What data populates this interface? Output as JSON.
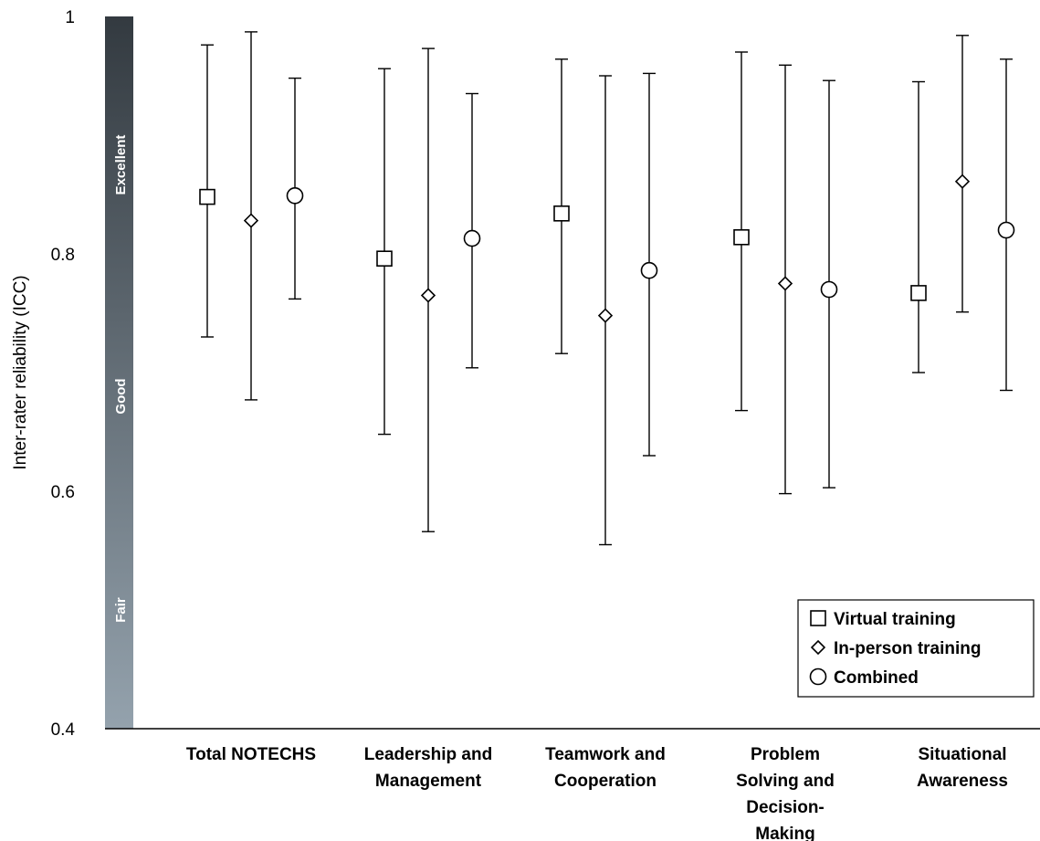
{
  "chart_data": {
    "type": "scatter",
    "ylabel": "Inter-rater reliability (ICC)",
    "xlabel": "",
    "ylim": [
      0.4,
      1.0
    ],
    "yticks": [
      0.4,
      0.6,
      0.8,
      1.0
    ],
    "ytick_labels": [
      "0.4",
      "0.6",
      "0.8",
      "1"
    ],
    "categories": [
      [
        "Total NOTECHS"
      ],
      [
        "Leadership and",
        "Management"
      ],
      [
        "Teamwork and",
        "Cooperation"
      ],
      [
        "Problem",
        "Solving and",
        "Decision-",
        "Making"
      ],
      [
        "Situational",
        "Awareness"
      ]
    ],
    "series": [
      {
        "name": "Virtual training",
        "marker": "square",
        "values": [
          0.848,
          0.796,
          0.834,
          0.814,
          0.767
        ],
        "lower": [
          0.73,
          0.648,
          0.716,
          0.668,
          0.7
        ],
        "upper": [
          0.976,
          0.956,
          0.964,
          0.97,
          0.945
        ]
      },
      {
        "name": "In-person training",
        "marker": "diamond",
        "values": [
          0.828,
          0.765,
          0.748,
          0.775,
          0.861
        ],
        "lower": [
          0.677,
          0.566,
          0.555,
          0.598,
          0.751
        ],
        "upper": [
          0.987,
          0.973,
          0.95,
          0.959,
          0.984
        ]
      },
      {
        "name": "Combined",
        "marker": "circle",
        "values": [
          0.849,
          0.813,
          0.786,
          0.77,
          0.82
        ],
        "lower": [
          0.762,
          0.704,
          0.63,
          0.603,
          0.685
        ],
        "upper": [
          0.948,
          0.935,
          0.952,
          0.946,
          0.964
        ]
      }
    ],
    "bands": [
      {
        "label": "Excellent",
        "center": 0.875
      },
      {
        "label": "Good",
        "center": 0.68
      },
      {
        "label": "Fair",
        "center": 0.5
      }
    ],
    "legend_position": "bottom-right",
    "grid": false,
    "colors": {
      "band_top": "#333a40",
      "band_bottom": "#94a2ad",
      "marker_fill": "#ffffff",
      "line": "#000000"
    }
  }
}
